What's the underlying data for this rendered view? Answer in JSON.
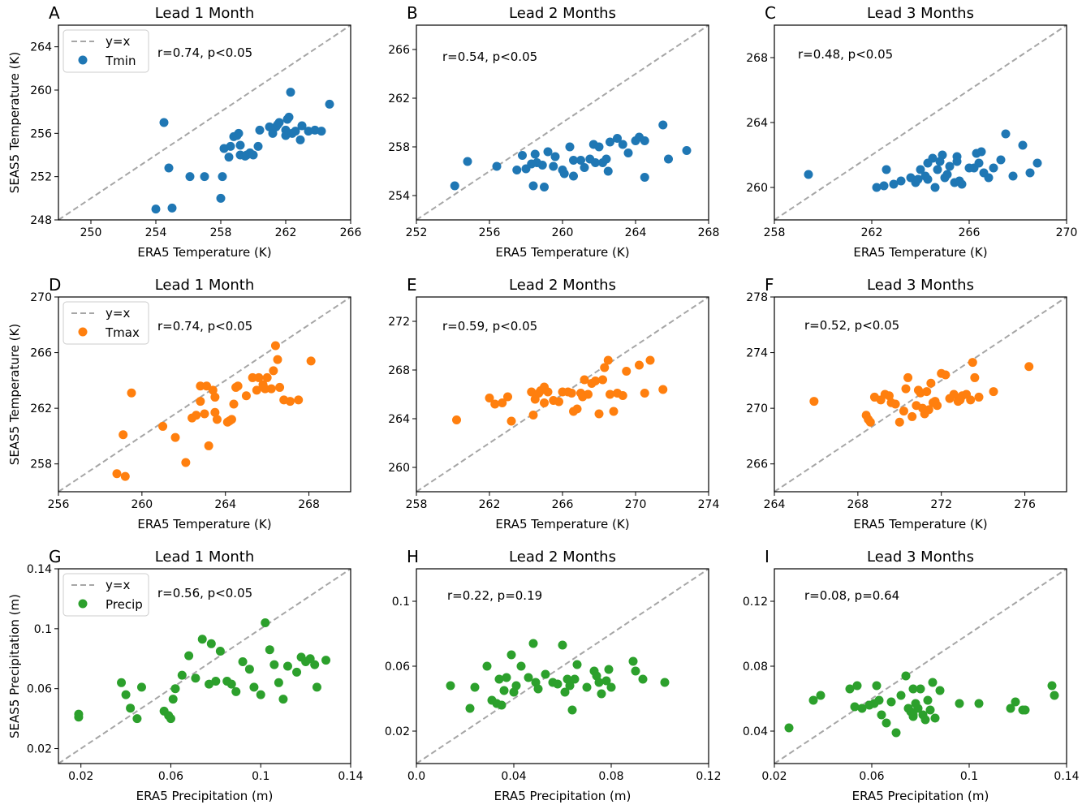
{
  "chart_data": [
    {
      "panel": "A",
      "row": 0,
      "col": 0,
      "type": "scatter",
      "title": "Lead 1 Month",
      "xlabel": "ERA5 Temperature (K)",
      "ylabel": "SEAS5 Temperature (K)",
      "xlim": [
        248,
        266
      ],
      "ylim": [
        248,
        266
      ],
      "xticks": [
        250,
        254,
        258,
        262,
        266
      ],
      "yticks": [
        248,
        252,
        256,
        260,
        264
      ],
      "xtick_labels": [
        "250",
        "254",
        "258",
        "262",
        "266"
      ],
      "ytick_labels": [
        "248",
        "252",
        "256",
        "260",
        "264"
      ],
      "stat_text": "r=0.74, p<0.05",
      "series_name": "Tmin",
      "color": "#1f77b4",
      "legend": {
        "line_label": "y=x",
        "series_label": "Tmin"
      },
      "x": [
        254.0,
        254.5,
        254.8,
        255.0,
        256.1,
        257.0,
        258.0,
        258.1,
        258.5,
        258.2,
        258.6,
        258.8,
        259.0,
        259.1,
        259.2,
        259.2,
        259.5,
        259.6,
        259.8,
        260.0,
        260.4,
        260.3,
        261.0,
        261.2,
        261.4,
        261.5,
        261.6,
        262.0,
        262.1,
        262.2,
        262.6,
        263.0,
        262.9,
        262.0,
        262.4,
        263.4,
        263.8,
        264.2,
        264.7,
        262.3
      ],
      "y": [
        249.0,
        257.0,
        252.8,
        249.1,
        252.0,
        252.0,
        250.0,
        252.0,
        253.8,
        254.6,
        254.8,
        255.7,
        255.8,
        256.0,
        254.0,
        254.9,
        253.9,
        254.0,
        254.2,
        254.0,
        256.3,
        254.8,
        256.6,
        256.0,
        256.6,
        256.8,
        257.0,
        256.3,
        257.3,
        257.5,
        256.2,
        256.7,
        255.4,
        255.8,
        256.0,
        256.2,
        256.3,
        256.2,
        258.7,
        259.8
      ]
    },
    {
      "panel": "B",
      "row": 0,
      "col": 1,
      "type": "scatter",
      "title": "Lead 2 Months",
      "xlabel": "ERA5 Temperature (K)",
      "ylabel": "",
      "xlim": [
        252,
        268
      ],
      "ylim": [
        252,
        268
      ],
      "xticks": [
        252,
        256,
        260,
        264,
        268
      ],
      "yticks": [
        254,
        258,
        262,
        266
      ],
      "xtick_labels": [
        "252",
        "256",
        "260",
        "264",
        "268"
      ],
      "ytick_labels": [
        "254",
        "258",
        "262",
        "266"
      ],
      "stat_text": "r=0.54, p<0.05",
      "series_name": "Tmin",
      "color": "#1f77b4",
      "x": [
        254.1,
        254.8,
        256.4,
        257.5,
        257.8,
        258.0,
        258.4,
        258.5,
        258.6,
        258.9,
        259.0,
        259.2,
        259.5,
        259.6,
        260.0,
        260.1,
        260.4,
        260.6,
        261.0,
        261.2,
        261.5,
        261.7,
        262.0,
        262.2,
        262.4,
        262.6,
        263.0,
        263.3,
        263.6,
        264.0,
        264.2,
        264.5,
        265.5,
        265.8,
        266.8,
        258.3,
        260.6,
        262.5,
        264.5,
        261.8
      ],
      "y": [
        254.8,
        256.8,
        256.4,
        256.1,
        257.3,
        256.2,
        254.8,
        257.4,
        256.7,
        256.5,
        254.7,
        257.6,
        256.4,
        257.2,
        256.1,
        255.8,
        258.0,
        255.6,
        256.9,
        256.3,
        257.0,
        258.2,
        258.0,
        256.7,
        257.0,
        258.4,
        258.7,
        258.2,
        257.5,
        258.5,
        258.8,
        255.5,
        259.8,
        257.0,
        257.7,
        256.6,
        256.9,
        256.0,
        258.5,
        256.7
      ]
    },
    {
      "panel": "C",
      "row": 0,
      "col": 2,
      "type": "scatter",
      "title": "Lead 3 Months",
      "xlabel": "ERA5 Temperature (K)",
      "ylabel": "",
      "xlim": [
        258,
        270
      ],
      "ylim": [
        258,
        270
      ],
      "xticks": [
        258,
        262,
        266,
        270
      ],
      "yticks": [
        260,
        264,
        268
      ],
      "xtick_labels": [
        "258",
        "262",
        "266",
        "270"
      ],
      "ytick_labels": [
        "260",
        "264",
        "268"
      ],
      "stat_text": "r=0.48, p<0.05",
      "series_name": "Tmin",
      "color": "#1f77b4",
      "x": [
        259.4,
        262.2,
        262.5,
        262.9,
        263.2,
        263.6,
        263.8,
        263.9,
        264.0,
        264.2,
        264.3,
        264.5,
        264.6,
        264.7,
        264.9,
        265.0,
        265.1,
        265.2,
        265.4,
        265.5,
        265.6,
        265.7,
        266.2,
        266.3,
        266.5,
        266.6,
        266.8,
        267.0,
        267.3,
        267.5,
        268.2,
        268.5,
        268.8,
        266.4,
        264.3,
        266.0,
        265.5,
        267.8,
        262.6,
        264.8
      ],
      "y": [
        260.8,
        260.0,
        260.1,
        260.2,
        260.4,
        260.6,
        260.3,
        260.5,
        261.1,
        260.7,
        260.5,
        261.8,
        260.0,
        261.1,
        262.0,
        260.6,
        260.8,
        261.3,
        260.3,
        261.9,
        260.4,
        260.2,
        261.2,
        262.1,
        262.2,
        260.9,
        260.6,
        261.2,
        261.7,
        263.3,
        262.6,
        260.9,
        261.5,
        261.5,
        261.5,
        261.2,
        261.6,
        260.7,
        261.1,
        261.6
      ]
    },
    {
      "panel": "D",
      "row": 1,
      "col": 0,
      "type": "scatter",
      "title": "Lead 1 Month",
      "xlabel": "ERA5 Temperature (K)",
      "ylabel": "SEAS5 Temperature (K)",
      "xlim": [
        256,
        270
      ],
      "ylim": [
        256,
        270
      ],
      "xticks": [
        256,
        260,
        264,
        268
      ],
      "yticks": [
        258,
        262,
        266,
        270
      ],
      "xtick_labels": [
        "256",
        "260",
        "264",
        "268"
      ],
      "ytick_labels": [
        "258",
        "262",
        "266",
        "270"
      ],
      "stat_text": "r=0.74, p<0.05",
      "series_name": "Tmax",
      "color": "#ff7f0e",
      "legend": {
        "line_label": "y=x",
        "series_label": "Tmax"
      },
      "x": [
        258.8,
        259.2,
        259.1,
        259.5,
        261.0,
        261.6,
        262.1,
        262.4,
        262.6,
        262.8,
        263.0,
        263.2,
        263.4,
        263.5,
        263.6,
        264.1,
        264.2,
        264.3,
        264.4,
        264.5,
        265.0,
        265.3,
        265.5,
        265.6,
        265.8,
        266.0,
        266.2,
        266.3,
        266.5,
        266.6,
        266.8,
        267.1,
        267.5,
        268.1,
        262.8,
        263.1,
        263.5,
        264.6,
        265.9,
        266.4
      ],
      "y": [
        257.3,
        257.1,
        260.1,
        263.1,
        260.7,
        259.9,
        258.1,
        261.3,
        261.5,
        263.6,
        261.6,
        259.3,
        263.3,
        262.8,
        261.2,
        261.0,
        261.1,
        261.2,
        262.3,
        263.5,
        262.9,
        264.2,
        263.3,
        264.2,
        263.7,
        264.2,
        263.4,
        264.7,
        265.5,
        263.5,
        262.6,
        262.5,
        262.6,
        265.4,
        262.5,
        263.6,
        261.7,
        263.6,
        263.4,
        266.5
      ]
    },
    {
      "panel": "E",
      "row": 1,
      "col": 1,
      "type": "scatter",
      "title": "Lead 2 Months",
      "xlabel": "ERA5 Temperature (K)",
      "ylabel": "",
      "xlim": [
        258,
        274
      ],
      "ylim": [
        258,
        274
      ],
      "xticks": [
        258,
        262,
        266,
        270,
        274
      ],
      "yticks": [
        260,
        264,
        268,
        272
      ],
      "xtick_labels": [
        "258",
        "262",
        "266",
        "270",
        "274"
      ],
      "ytick_labels": [
        "260",
        "264",
        "268",
        "272"
      ],
      "stat_text": "r=0.59, p<0.05",
      "series_name": "Tmax",
      "color": "#ff7f0e",
      "x": [
        260.2,
        262.0,
        262.3,
        262.7,
        263.2,
        263.0,
        264.3,
        264.5,
        264.8,
        265.0,
        265.2,
        265.5,
        265.8,
        266.0,
        266.5,
        266.6,
        266.8,
        267.0,
        267.2,
        267.4,
        267.6,
        267.8,
        268.0,
        268.2,
        268.3,
        268.5,
        268.8,
        269.0,
        269.3,
        269.5,
        270.2,
        270.5,
        270.8,
        271.5,
        264.4,
        265.0,
        266.3,
        267.1,
        268.6,
        264.7
      ],
      "y": [
        263.9,
        265.7,
        265.2,
        265.3,
        263.8,
        265.8,
        266.2,
        265.6,
        266.3,
        266.6,
        266.2,
        265.5,
        265.4,
        266.2,
        266.1,
        264.6,
        264.8,
        266.1,
        267.2,
        266.0,
        266.9,
        267.1,
        264.4,
        267.2,
        268.2,
        268.8,
        264.6,
        266.1,
        265.9,
        267.9,
        268.4,
        266.1,
        268.8,
        266.4,
        264.3,
        265.3,
        266.2,
        265.8,
        266.0,
        266.1
      ]
    },
    {
      "panel": "F",
      "row": 1,
      "col": 2,
      "type": "scatter",
      "title": "Lead 3 Months",
      "xlabel": "ERA5 Temperature (K)",
      "ylabel": "",
      "xlim": [
        264,
        278
      ],
      "ylim": [
        264,
        278
      ],
      "xticks": [
        264,
        268,
        272,
        276
      ],
      "yticks": [
        266,
        270,
        274,
        278
      ],
      "xtick_labels": [
        "264",
        "268",
        "272",
        "276"
      ],
      "ytick_labels": [
        "266",
        "270",
        "274",
        "278"
      ],
      "stat_text": "r=0.52, p<0.05",
      "series_name": "Tmax",
      "color": "#ff7f0e",
      "x": [
        265.9,
        268.4,
        268.5,
        268.6,
        268.8,
        269.1,
        269.3,
        269.5,
        269.8,
        270.0,
        270.2,
        270.4,
        270.6,
        270.8,
        271.0,
        271.2,
        271.4,
        271.5,
        271.7,
        271.8,
        272.0,
        272.2,
        272.4,
        272.6,
        272.8,
        273.0,
        273.2,
        273.5,
        273.8,
        274.5,
        276.2,
        269.6,
        270.3,
        271.1,
        271.6,
        272.9,
        273.6,
        270.9,
        271.3,
        273.4
      ],
      "y": [
        270.5,
        269.5,
        269.2,
        269.0,
        270.8,
        270.6,
        271.0,
        270.9,
        270.3,
        269.0,
        269.8,
        272.2,
        269.4,
        270.2,
        271.1,
        269.6,
        269.9,
        271.8,
        270.5,
        270.2,
        272.5,
        272.4,
        270.7,
        271.0,
        270.5,
        270.9,
        271.0,
        273.3,
        270.8,
        271.2,
        273.0,
        270.4,
        271.4,
        270.0,
        270.4,
        270.6,
        272.2,
        271.3,
        271.2,
        270.6
      ]
    },
    {
      "panel": "G",
      "row": 2,
      "col": 0,
      "type": "scatter",
      "title": "Lead 1 Month",
      "xlabel": "ERA5 Precipitation (m)",
      "ylabel": "SEAS5 Precipitation (m)",
      "xlim": [
        0.01,
        0.14
      ],
      "ylim": [
        0.01,
        0.14
      ],
      "xticks": [
        0.02,
        0.06,
        0.1,
        0.14
      ],
      "yticks": [
        0.02,
        0.06,
        0.1,
        0.14
      ],
      "xtick_labels": [
        "0.02",
        "0.06",
        "0.1",
        "0.14"
      ],
      "ytick_labels": [
        "0.02",
        "0.06",
        "0.1",
        "0.14"
      ],
      "stat_text": "r=0.56, p<0.05",
      "series_name": "Precip",
      "color": "#2ca02c",
      "legend": {
        "line_label": "y=x",
        "series_label": "Precip"
      },
      "x": [
        0.019,
        0.019,
        0.038,
        0.04,
        0.042,
        0.045,
        0.047,
        0.057,
        0.059,
        0.06,
        0.061,
        0.062,
        0.065,
        0.068,
        0.071,
        0.074,
        0.077,
        0.078,
        0.08,
        0.082,
        0.085,
        0.087,
        0.089,
        0.092,
        0.095,
        0.097,
        0.1,
        0.102,
        0.104,
        0.106,
        0.108,
        0.11,
        0.112,
        0.116,
        0.118,
        0.12,
        0.122,
        0.124,
        0.125,
        0.129
      ],
      "y": [
        0.043,
        0.041,
        0.064,
        0.056,
        0.047,
        0.04,
        0.061,
        0.045,
        0.042,
        0.04,
        0.053,
        0.06,
        0.069,
        0.082,
        0.067,
        0.093,
        0.063,
        0.09,
        0.065,
        0.085,
        0.065,
        0.063,
        0.058,
        0.078,
        0.073,
        0.061,
        0.056,
        0.104,
        0.086,
        0.076,
        0.064,
        0.053,
        0.075,
        0.071,
        0.081,
        0.078,
        0.08,
        0.076,
        0.061,
        0.079
      ]
    },
    {
      "panel": "H",
      "row": 2,
      "col": 1,
      "type": "scatter",
      "title": "Lead 2 Months",
      "xlabel": "ERA5 Precipitation (m)",
      "ylabel": "",
      "xlim": [
        0.0,
        0.12
      ],
      "ylim": [
        0.0,
        0.12
      ],
      "xticks": [
        0.0,
        0.04,
        0.08,
        0.12
      ],
      "yticks": [
        0.02,
        0.06,
        0.1
      ],
      "xtick_labels": [
        "0.0",
        "0.04",
        "0.08",
        "0.12"
      ],
      "ytick_labels": [
        "0.02",
        "0.06",
        "0.1"
      ],
      "stat_text": "r=0.22, p=0.19",
      "series_name": "Precip",
      "color": "#2ca02c",
      "x": [
        0.014,
        0.022,
        0.024,
        0.029,
        0.031,
        0.033,
        0.034,
        0.035,
        0.036,
        0.037,
        0.039,
        0.04,
        0.041,
        0.043,
        0.046,
        0.048,
        0.049,
        0.05,
        0.053,
        0.056,
        0.058,
        0.06,
        0.061,
        0.062,
        0.063,
        0.064,
        0.065,
        0.066,
        0.07,
        0.073,
        0.074,
        0.075,
        0.076,
        0.078,
        0.079,
        0.08,
        0.089,
        0.09,
        0.093,
        0.102
      ],
      "y": [
        0.048,
        0.034,
        0.047,
        0.06,
        0.039,
        0.037,
        0.052,
        0.036,
        0.045,
        0.053,
        0.067,
        0.044,
        0.048,
        0.06,
        0.053,
        0.074,
        0.05,
        0.046,
        0.055,
        0.05,
        0.049,
        0.073,
        0.044,
        0.052,
        0.048,
        0.033,
        0.052,
        0.061,
        0.047,
        0.057,
        0.054,
        0.05,
        0.043,
        0.051,
        0.058,
        0.047,
        0.063,
        0.057,
        0.052,
        0.05
      ]
    },
    {
      "panel": "I",
      "row": 2,
      "col": 2,
      "type": "scatter",
      "title": "Lead 3 Months",
      "xlabel": "ERA5 Precipitation (m)",
      "ylabel": "",
      "xlim": [
        0.02,
        0.14
      ],
      "ylim": [
        0.02,
        0.14
      ],
      "xticks": [
        0.02,
        0.06,
        0.1,
        0.14
      ],
      "yticks": [
        0.04,
        0.08,
        0.12
      ],
      "xtick_labels": [
        "0.02",
        "0.06",
        "0.1",
        "0.14"
      ],
      "ytick_labels": [
        "0.04",
        "0.08",
        "0.12"
      ],
      "stat_text": "r=0.08, p=0.64",
      "series_name": "Precip",
      "color": "#2ca02c",
      "x": [
        0.026,
        0.036,
        0.039,
        0.051,
        0.053,
        0.054,
        0.056,
        0.059,
        0.061,
        0.062,
        0.063,
        0.064,
        0.066,
        0.068,
        0.07,
        0.072,
        0.074,
        0.075,
        0.076,
        0.077,
        0.077,
        0.078,
        0.079,
        0.08,
        0.081,
        0.082,
        0.083,
        0.084,
        0.085,
        0.086,
        0.088,
        0.096,
        0.104,
        0.117,
        0.119,
        0.122,
        0.123,
        0.134,
        0.135,
        0.077
      ],
      "y": [
        0.042,
        0.059,
        0.062,
        0.066,
        0.055,
        0.068,
        0.054,
        0.056,
        0.057,
        0.068,
        0.059,
        0.05,
        0.045,
        0.058,
        0.039,
        0.062,
        0.074,
        0.054,
        0.052,
        0.066,
        0.05,
        0.057,
        0.054,
        0.066,
        0.05,
        0.047,
        0.059,
        0.053,
        0.07,
        0.048,
        0.065,
        0.057,
        0.057,
        0.054,
        0.058,
        0.053,
        0.053,
        0.068,
        0.062,
        0.049
      ]
    }
  ]
}
